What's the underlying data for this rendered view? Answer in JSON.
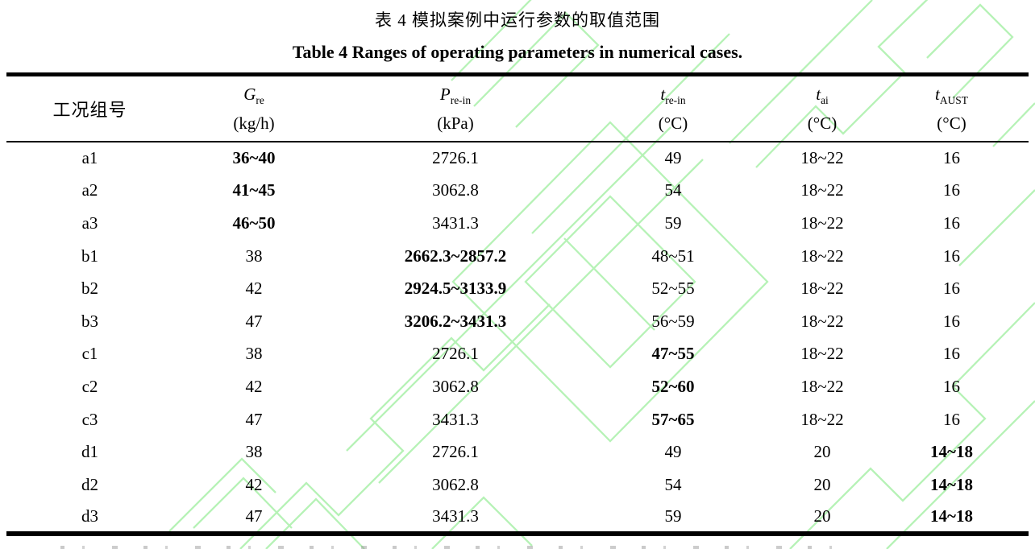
{
  "page": {
    "title_zh": "表 4  模拟案例中运行参数的取值范围",
    "title_en": "Table 4 Ranges of operating parameters in numerical cases."
  },
  "watermark": {
    "color": "#b6f2b6"
  },
  "table": {
    "columns": [
      {
        "label": "工况组号",
        "symbol": "",
        "sub": "",
        "unit": ""
      },
      {
        "label": "Gre",
        "symbol": "G",
        "sub": "re",
        "unit": "(kg/h)"
      },
      {
        "label": "Pre-in",
        "symbol": "P",
        "sub": "re-in",
        "unit": "(kPa)"
      },
      {
        "label": "tre-in",
        "symbol": "t",
        "sub": "re-in",
        "unit": "(°C)"
      },
      {
        "label": "tai",
        "symbol": "t",
        "sub": "ai",
        "unit": "(°C)"
      },
      {
        "label": "tAUST",
        "symbol": "t",
        "sub": "AUST",
        "unit": "(°C)"
      }
    ],
    "rows": [
      {
        "case": "a1",
        "values": [
          "36~40",
          "2726.1",
          "49",
          "18~22",
          "16"
        ],
        "bold_value_index": 0
      },
      {
        "case": "a2",
        "values": [
          "41~45",
          "3062.8",
          "54",
          "18~22",
          "16"
        ],
        "bold_value_index": 0
      },
      {
        "case": "a3",
        "values": [
          "46~50",
          "3431.3",
          "59",
          "18~22",
          "16"
        ],
        "bold_value_index": 0
      },
      {
        "case": "b1",
        "values": [
          "38",
          "2662.3~2857.2",
          "48~51",
          "18~22",
          "16"
        ],
        "bold_value_index": 1
      },
      {
        "case": "b2",
        "values": [
          "42",
          "2924.5~3133.9",
          "52~55",
          "18~22",
          "16"
        ],
        "bold_value_index": 1
      },
      {
        "case": "b3",
        "values": [
          "47",
          "3206.2~3431.3",
          "56~59",
          "18~22",
          "16"
        ],
        "bold_value_index": 1
      },
      {
        "case": "c1",
        "values": [
          "38",
          "2726.1",
          "47~55",
          "18~22",
          "16"
        ],
        "bold_value_index": 2
      },
      {
        "case": "c2",
        "values": [
          "42",
          "3062.8",
          "52~60",
          "18~22",
          "16"
        ],
        "bold_value_index": 2
      },
      {
        "case": "c3",
        "values": [
          "47",
          "3431.3",
          "57~65",
          "18~22",
          "16"
        ],
        "bold_value_index": 2
      },
      {
        "case": "d1",
        "values": [
          "38",
          "2726.1",
          "49",
          "20",
          "14~18"
        ],
        "bold_value_index": 4
      },
      {
        "case": "d2",
        "values": [
          "42",
          "3062.8",
          "54",
          "20",
          "14~18"
        ],
        "bold_value_index": 4
      },
      {
        "case": "d3",
        "values": [
          "47",
          "3431.3",
          "59",
          "20",
          "14~18"
        ],
        "bold_value_index": 4
      }
    ]
  }
}
